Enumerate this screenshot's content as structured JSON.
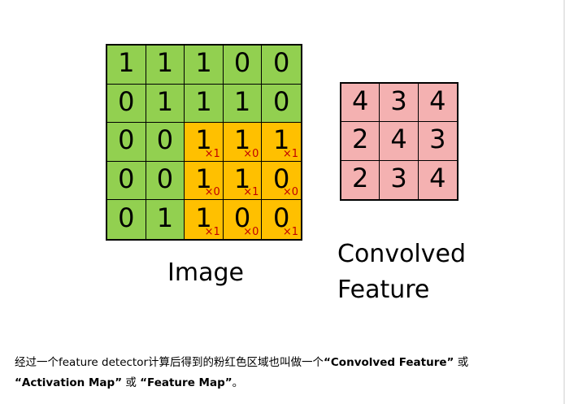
{
  "image": {
    "label": "Image",
    "rows": [
      [
        1,
        1,
        1,
        0,
        0
      ],
      [
        0,
        1,
        1,
        1,
        0
      ],
      [
        0,
        0,
        1,
        1,
        1
      ],
      [
        0,
        0,
        1,
        1,
        0
      ],
      [
        0,
        1,
        1,
        0,
        0
      ]
    ],
    "highlight": {
      "rows": [
        2,
        3,
        4
      ],
      "cols": [
        2,
        3,
        4
      ]
    },
    "kernel_labels": [
      [
        "×1",
        "×0",
        "×1"
      ],
      [
        "×0",
        "×1",
        "×0"
      ],
      [
        "×1",
        "×0",
        "×1"
      ]
    ]
  },
  "feature": {
    "label_line1": "Convolved",
    "label_line2": "Feature",
    "rows": [
      [
        4,
        3,
        4
      ],
      [
        2,
        4,
        3
      ],
      [
        2,
        3,
        4
      ]
    ]
  },
  "description": {
    "part1": "经过一个feature detector计算后得到的粉红色区域也叫做一个",
    "term1": "“Convolved Feature”",
    "or1": " 或",
    "term2": "“Activation Map”",
    "or2": " 或 ",
    "term3": "“Feature Map”",
    "end": "。"
  },
  "colors": {
    "green": "#92d050",
    "orange": "#ffc000",
    "pink": "#f4b1b1",
    "kernel_text": "#c00000"
  }
}
